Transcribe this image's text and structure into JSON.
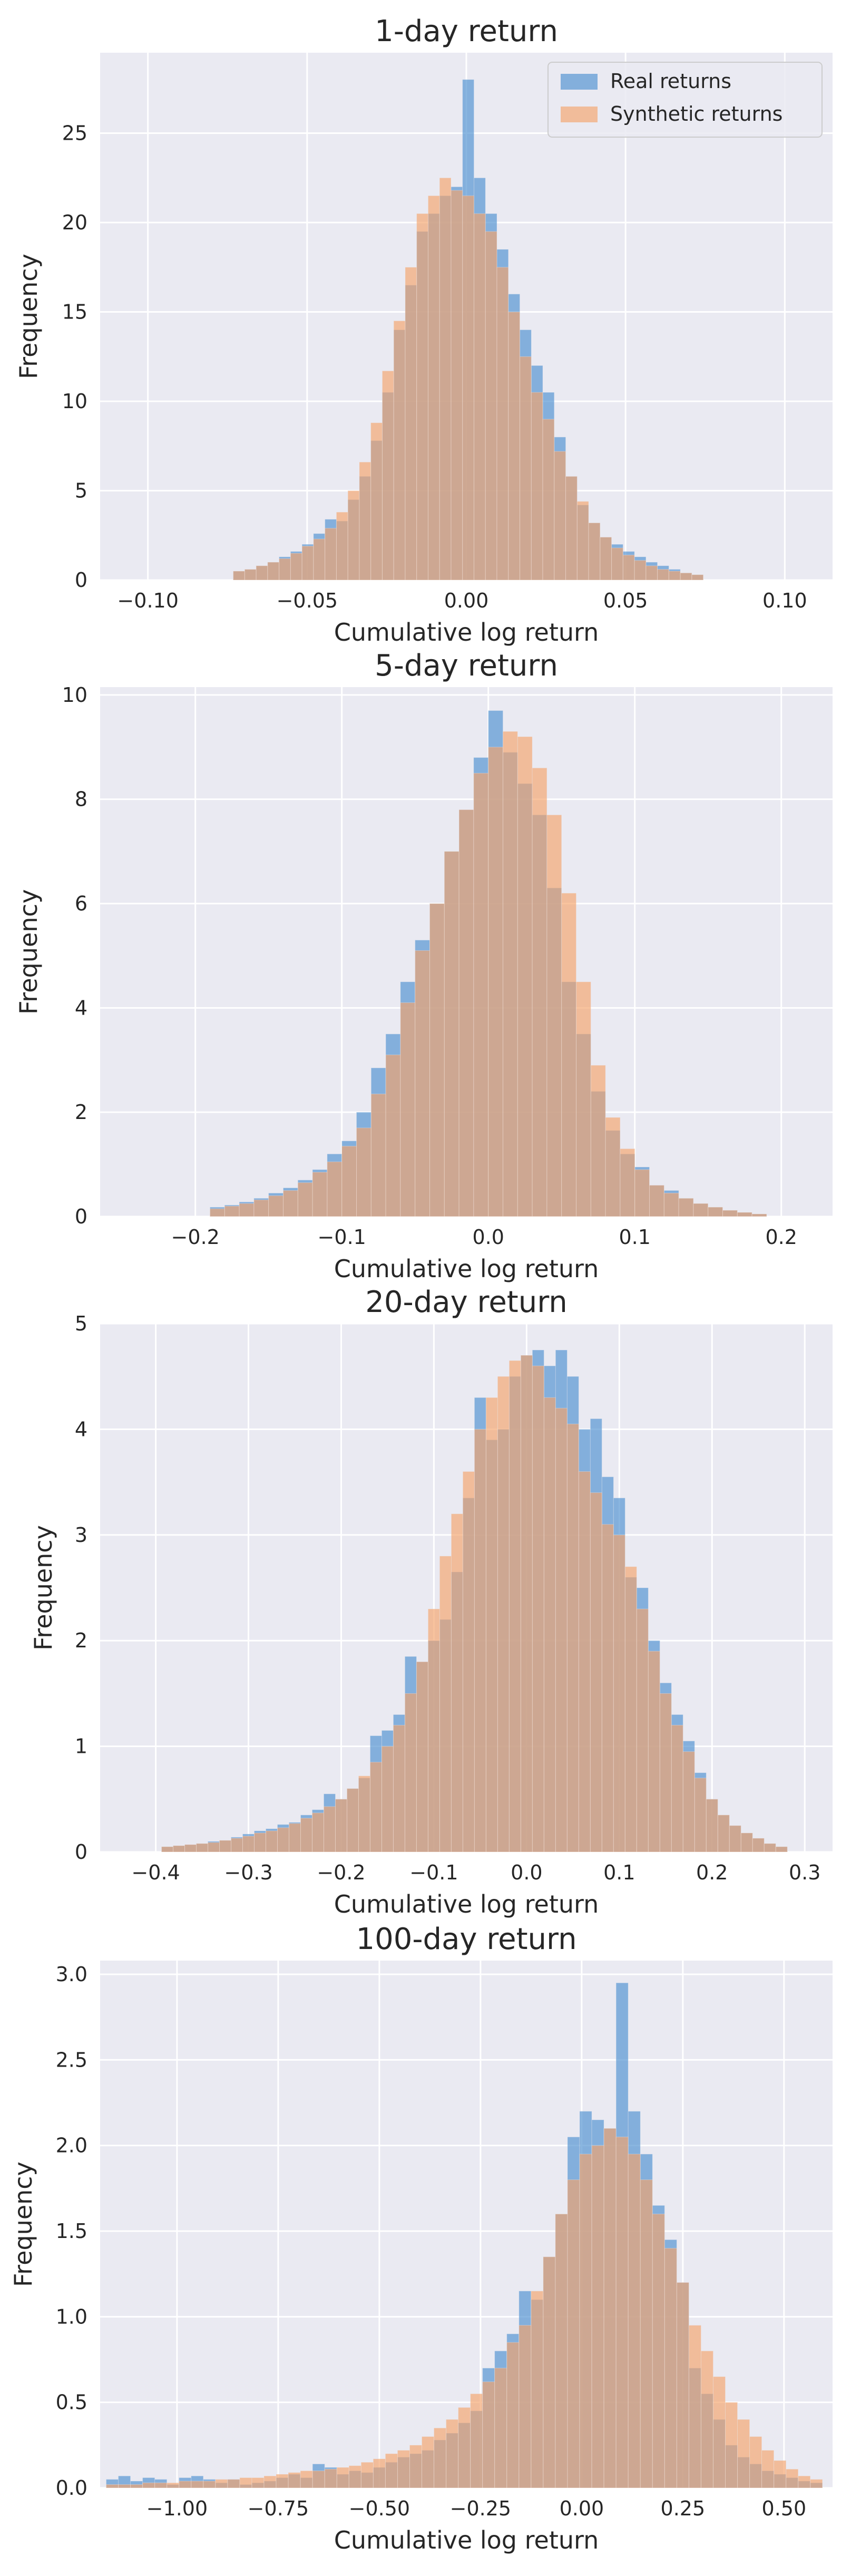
{
  "chart_data": [
    {
      "type": "bar",
      "title": "1-day return",
      "xlabel": "Cumulative log return",
      "ylabel": "Frequency",
      "xlim": [
        -0.115,
        0.115
      ],
      "ylim": [
        0,
        29.5
      ],
      "xticks": [
        -0.1,
        -0.05,
        0.0,
        0.05,
        0.1
      ],
      "xtick_labels": [
        "−0.10",
        "−0.05",
        "0.00",
        "0.05",
        "0.10"
      ],
      "yticks": [
        0,
        5,
        10,
        15,
        20,
        25
      ],
      "ytick_labels": [
        "0",
        "5",
        "10",
        "15",
        "20",
        "25"
      ],
      "grid": true,
      "legend": {
        "placement": "top-right",
        "entries": [
          "Real returns",
          "Synthetic returns"
        ]
      },
      "bin_width": 0.0036,
      "bin_centers": [
        -0.0714,
        -0.0678,
        -0.0642,
        -0.0606,
        -0.057,
        -0.0534,
        -0.0498,
        -0.0462,
        -0.0426,
        -0.039,
        -0.0354,
        -0.0318,
        -0.0282,
        -0.0246,
        -0.021,
        -0.0174,
        -0.0138,
        -0.0102,
        -0.0066,
        -0.003,
        0.0006,
        0.0042,
        0.0078,
        0.0114,
        0.015,
        0.0186,
        0.0222,
        0.0258,
        0.0294,
        0.033,
        0.0366,
        0.0402,
        0.0438,
        0.0474,
        0.051,
        0.0546,
        0.0582,
        0.0618,
        0.0654,
        0.069,
        0.0726
      ],
      "series": [
        {
          "name": "Real returns",
          "color": "#4c8fcf",
          "values": [
            0.5,
            0.6,
            0.8,
            1.0,
            1.3,
            1.6,
            2.0,
            2.6,
            3.4,
            3.3,
            4.5,
            5.8,
            7.8,
            10.5,
            14.0,
            16.5,
            19.5,
            20.5,
            21.5,
            22.0,
            28.0,
            22.5,
            20.5,
            18.5,
            16.0,
            14.0,
            12.0,
            10.5,
            8.0,
            5.8,
            4.2,
            3.2,
            2.4,
            2.0,
            1.6,
            1.3,
            1.0,
            0.8,
            0.6,
            0.4,
            0.3
          ]
        },
        {
          "name": "Synthetic returns",
          "color": "#f5a36a",
          "values": [
            0.5,
            0.6,
            0.8,
            1.0,
            1.2,
            1.5,
            1.9,
            2.3,
            2.9,
            3.8,
            5.0,
            6.6,
            8.8,
            11.7,
            14.5,
            17.5,
            20.5,
            21.5,
            22.5,
            21.8,
            21.5,
            20.5,
            19.5,
            17.5,
            15.0,
            12.5,
            10.5,
            9.0,
            7.2,
            5.8,
            4.4,
            3.2,
            2.4,
            1.8,
            1.4,
            1.1,
            0.8,
            0.6,
            0.5,
            0.4,
            0.3
          ]
        }
      ]
    },
    {
      "type": "bar",
      "title": "5-day return",
      "xlabel": "Cumulative log return",
      "ylabel": "Frequency",
      "xlim": [
        -0.265,
        0.235
      ],
      "ylim": [
        0,
        10.15
      ],
      "xticks": [
        -0.2,
        -0.1,
        0.0,
        0.1,
        0.2
      ],
      "xtick_labels": [
        "−0.2",
        "−0.1",
        "0.0",
        "0.1",
        "0.2"
      ],
      "yticks": [
        0,
        2,
        4,
        6,
        8,
        10
      ],
      "ytick_labels": [
        "0",
        "2",
        "4",
        "6",
        "8",
        "10"
      ],
      "grid": true,
      "bin_width": 0.01,
      "bin_centers": [
        -0.185,
        -0.175,
        -0.165,
        -0.155,
        -0.145,
        -0.135,
        -0.125,
        -0.115,
        -0.105,
        -0.095,
        -0.085,
        -0.075,
        -0.065,
        -0.055,
        -0.045,
        -0.035,
        -0.025,
        -0.015,
        -0.005,
        0.005,
        0.015,
        0.025,
        0.035,
        0.045,
        0.055,
        0.065,
        0.075,
        0.085,
        0.095,
        0.105,
        0.115,
        0.125,
        0.135,
        0.145,
        0.155,
        0.165,
        0.175,
        0.185
      ],
      "series": [
        {
          "name": "Real returns",
          "color": "#4c8fcf",
          "values": [
            0.18,
            0.22,
            0.28,
            0.35,
            0.45,
            0.55,
            0.7,
            0.9,
            1.2,
            1.45,
            2.0,
            2.85,
            3.5,
            4.5,
            5.3,
            6.0,
            7.0,
            7.8,
            8.8,
            9.7,
            8.9,
            8.3,
            7.7,
            6.3,
            4.5,
            3.5,
            2.4,
            1.65,
            1.2,
            0.95,
            0.6,
            0.5,
            0.35,
            0.25,
            0.18,
            0.12,
            0.08,
            0.05
          ]
        },
        {
          "name": "Synthetic returns",
          "color": "#f5a36a",
          "values": [
            0.15,
            0.2,
            0.25,
            0.32,
            0.4,
            0.5,
            0.65,
            0.85,
            1.05,
            1.35,
            1.7,
            2.35,
            3.1,
            4.1,
            5.1,
            6.0,
            7.0,
            7.8,
            8.5,
            9.0,
            9.3,
            9.2,
            8.6,
            7.7,
            6.2,
            4.5,
            2.9,
            1.9,
            1.3,
            0.9,
            0.6,
            0.45,
            0.35,
            0.25,
            0.18,
            0.12,
            0.08,
            0.05
          ]
        }
      ]
    },
    {
      "type": "bar",
      "title": "20-day return",
      "xlabel": "Cumulative log return",
      "ylabel": "Frequency",
      "xlim": [
        -0.46,
        0.33
      ],
      "ylim": [
        0,
        5.0
      ],
      "xticks": [
        -0.4,
        -0.3,
        -0.2,
        -0.1,
        0.0,
        0.1,
        0.2,
        0.3
      ],
      "xtick_labels": [
        "−0.4",
        "−0.3",
        "−0.2",
        "−0.1",
        "0.0",
        "0.1",
        "0.2",
        "0.3"
      ],
      "yticks": [
        0,
        1,
        2,
        3,
        4,
        5
      ],
      "ytick_labels": [
        "0",
        "1",
        "2",
        "3",
        "4",
        "5"
      ],
      "grid": true,
      "bin_width": 0.0125,
      "bin_centers": [
        -0.3875,
        -0.375,
        -0.3625,
        -0.35,
        -0.3375,
        -0.325,
        -0.3125,
        -0.3,
        -0.2875,
        -0.275,
        -0.2625,
        -0.25,
        -0.2375,
        -0.225,
        -0.2125,
        -0.2,
        -0.1875,
        -0.175,
        -0.1625,
        -0.15,
        -0.1375,
        -0.125,
        -0.1125,
        -0.1,
        -0.0875,
        -0.075,
        -0.0625,
        -0.05,
        -0.0375,
        -0.025,
        -0.0125,
        0.0,
        0.0125,
        0.025,
        0.0375,
        0.05,
        0.0625,
        0.075,
        0.0875,
        0.1,
        0.1125,
        0.125,
        0.1375,
        0.15,
        0.1625,
        0.175,
        0.1875,
        0.2,
        0.2125,
        0.225,
        0.2375,
        0.25,
        0.2625,
        0.275
      ],
      "series": [
        {
          "name": "Real returns",
          "color": "#4c8fcf",
          "values": [
            0.05,
            0.06,
            0.07,
            0.08,
            0.1,
            0.11,
            0.14,
            0.17,
            0.2,
            0.22,
            0.26,
            0.28,
            0.35,
            0.4,
            0.55,
            0.5,
            0.6,
            0.7,
            1.1,
            1.15,
            1.3,
            1.85,
            1.8,
            2.0,
            2.2,
            2.65,
            3.35,
            4.3,
            3.9,
            4.0,
            4.5,
            4.7,
            4.75,
            4.6,
            4.75,
            4.5,
            4.0,
            4.1,
            3.55,
            3.35,
            2.6,
            2.5,
            2.0,
            1.6,
            1.3,
            1.05,
            0.75,
            0.5,
            0.35,
            0.25,
            0.18,
            0.13,
            0.08,
            0.05
          ]
        },
        {
          "name": "Synthetic returns",
          "color": "#f5a36a",
          "values": [
            0.05,
            0.06,
            0.07,
            0.08,
            0.09,
            0.11,
            0.13,
            0.15,
            0.18,
            0.2,
            0.23,
            0.27,
            0.32,
            0.37,
            0.43,
            0.5,
            0.6,
            0.72,
            0.85,
            1.0,
            1.2,
            1.5,
            1.8,
            2.3,
            2.8,
            3.2,
            3.6,
            4.0,
            4.3,
            4.5,
            4.65,
            4.7,
            4.6,
            4.3,
            4.2,
            4.05,
            3.6,
            3.4,
            3.1,
            3.0,
            2.7,
            2.3,
            1.9,
            1.5,
            1.2,
            0.95,
            0.7,
            0.5,
            0.35,
            0.25,
            0.18,
            0.13,
            0.08,
            0.05
          ]
        }
      ]
    },
    {
      "type": "bar",
      "title": "100-day return",
      "xlabel": "Cumulative log return",
      "ylabel": "Frequency",
      "xlim": [
        -1.19,
        0.62
      ],
      "ylim": [
        0,
        3.08
      ],
      "xticks": [
        -1.0,
        -0.75,
        -0.5,
        -0.25,
        0.0,
        0.25,
        0.5
      ],
      "xtick_labels": [
        "−1.00",
        "−0.75",
        "−0.50",
        "−0.25",
        "0.00",
        "0.25",
        "0.50"
      ],
      "yticks": [
        0.0,
        0.5,
        1.0,
        1.5,
        2.0,
        2.5,
        3.0
      ],
      "ytick_labels": [
        "0.0",
        "0.5",
        "1.0",
        "1.5",
        "2.0",
        "2.5",
        "3.0"
      ],
      "grid": true,
      "bin_width": 0.03,
      "bin_centers": [
        -1.16,
        -1.13,
        -1.1,
        -1.07,
        -1.04,
        -1.01,
        -0.98,
        -0.95,
        -0.92,
        -0.89,
        -0.86,
        -0.83,
        -0.8,
        -0.77,
        -0.74,
        -0.71,
        -0.68,
        -0.65,
        -0.62,
        -0.59,
        -0.56,
        -0.53,
        -0.5,
        -0.47,
        -0.44,
        -0.41,
        -0.38,
        -0.35,
        -0.32,
        -0.29,
        -0.26,
        -0.23,
        -0.2,
        -0.17,
        -0.14,
        -0.11,
        -0.08,
        -0.05,
        -0.02,
        0.01,
        0.04,
        0.07,
        0.1,
        0.13,
        0.16,
        0.19,
        0.22,
        0.25,
        0.28,
        0.31,
        0.34,
        0.37,
        0.4,
        0.43,
        0.46,
        0.49,
        0.52,
        0.55,
        0.58
      ],
      "series": [
        {
          "name": "Real returns",
          "color": "#4c8fcf",
          "values": [
            0.05,
            0.07,
            0.04,
            0.06,
            0.05,
            0.02,
            0.06,
            0.07,
            0.05,
            0.03,
            0.05,
            0.02,
            0.03,
            0.04,
            0.06,
            0.08,
            0.06,
            0.14,
            0.12,
            0.08,
            0.1,
            0.09,
            0.12,
            0.15,
            0.18,
            0.2,
            0.22,
            0.28,
            0.32,
            0.38,
            0.45,
            0.7,
            0.8,
            0.9,
            1.15,
            1.1,
            1.35,
            1.6,
            2.05,
            2.2,
            2.15,
            2.1,
            2.95,
            2.2,
            1.95,
            1.65,
            1.45,
            1.2,
            0.7,
            0.55,
            0.4,
            0.25,
            0.18,
            0.14,
            0.1,
            0.08,
            0.06,
            0.04,
            0.03
          ]
        },
        {
          "name": "Synthetic returns",
          "color": "#f5a36a",
          "values": [
            0.02,
            0.02,
            0.02,
            0.03,
            0.03,
            0.03,
            0.04,
            0.04,
            0.04,
            0.05,
            0.05,
            0.06,
            0.06,
            0.07,
            0.08,
            0.09,
            0.1,
            0.1,
            0.11,
            0.12,
            0.13,
            0.15,
            0.17,
            0.2,
            0.22,
            0.25,
            0.3,
            0.35,
            0.4,
            0.47,
            0.55,
            0.62,
            0.7,
            0.85,
            0.95,
            1.15,
            1.35,
            1.6,
            1.8,
            1.95,
            2.0,
            2.1,
            2.05,
            1.95,
            1.8,
            1.6,
            1.4,
            1.2,
            0.95,
            0.8,
            0.65,
            0.5,
            0.4,
            0.3,
            0.22,
            0.16,
            0.11,
            0.07,
            0.05
          ]
        }
      ]
    }
  ]
}
